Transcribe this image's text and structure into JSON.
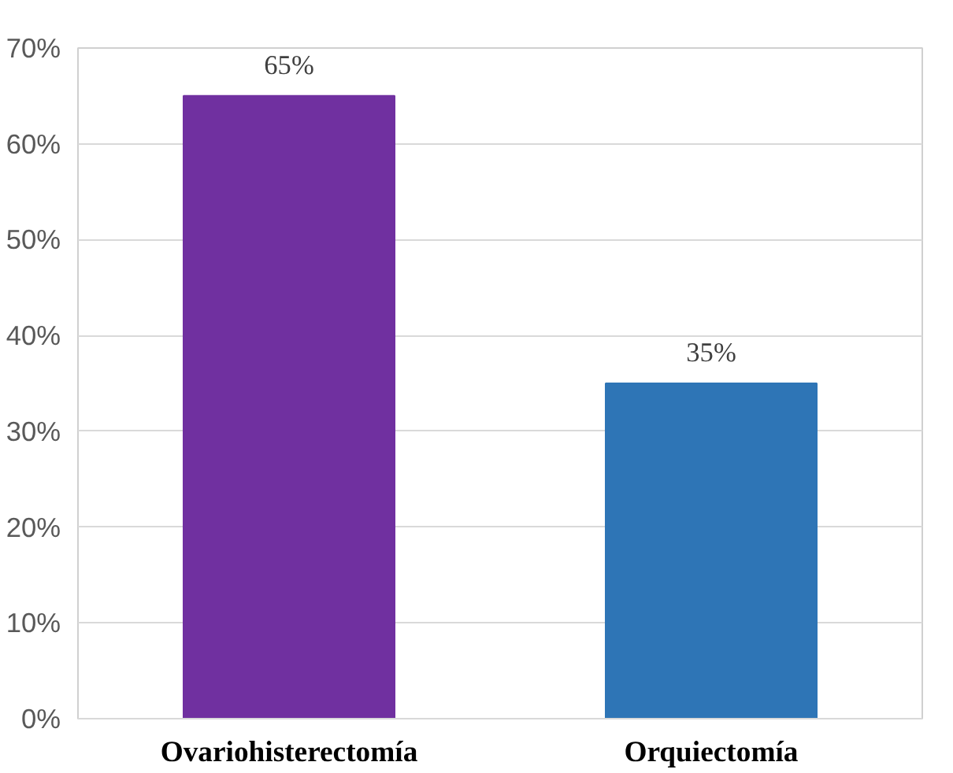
{
  "chart_data": {
    "type": "bar",
    "categories": [
      "Ovariohisterectomía",
      "Orquiectomía"
    ],
    "values": [
      65,
      35
    ],
    "colors": [
      "#7030a0",
      "#2e75b6"
    ],
    "value_labels": [
      "65%",
      "35%"
    ],
    "ylim": [
      0,
      70
    ],
    "yticks": [
      {
        "value": 0,
        "label": "0%"
      },
      {
        "value": 10,
        "label": "10%"
      },
      {
        "value": 20,
        "label": "20%"
      },
      {
        "value": 30,
        "label": "30%"
      },
      {
        "value": 40,
        "label": "40%"
      },
      {
        "value": 50,
        "label": "50%"
      },
      {
        "value": 60,
        "label": "60%"
      },
      {
        "value": 70,
        "label": "70%"
      }
    ],
    "grid": "y"
  }
}
